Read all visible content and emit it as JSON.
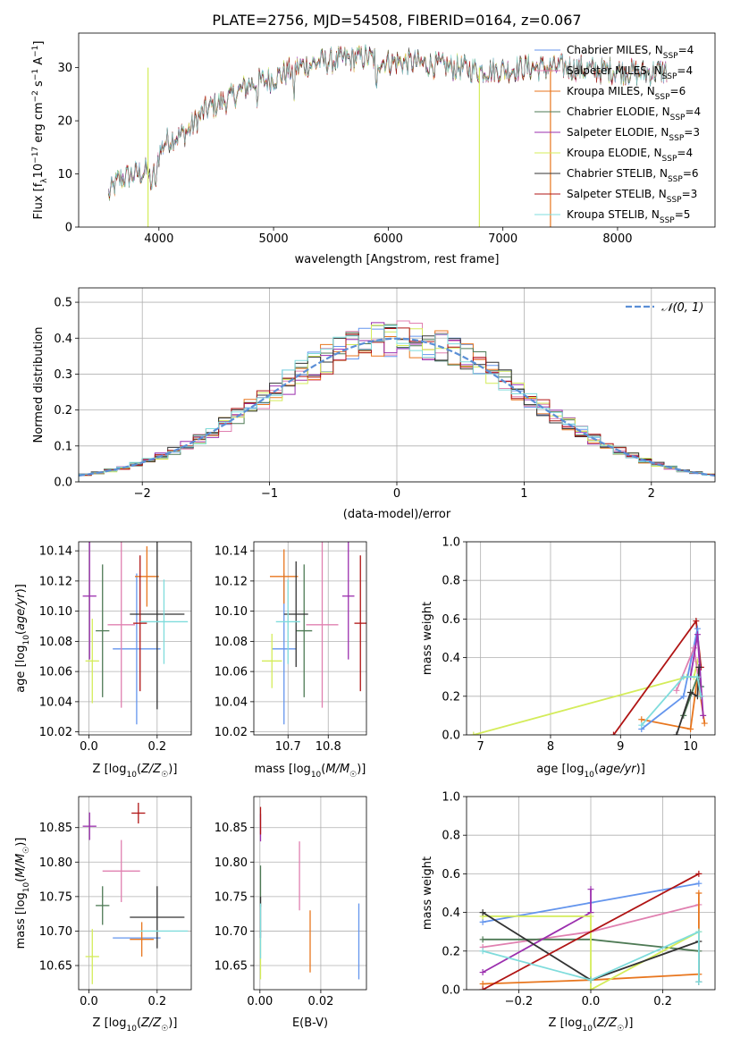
{
  "chart_data": [
    {
      "id": "spectrum",
      "type": "line",
      "title": "PLATE=2756, MJD=54508, FIBERID=0164, z=0.067",
      "xlabel": "wavelength [Angstrom, rest frame]",
      "ylabel_parts": [
        "Flux [f",
        "λ",
        "10",
        "−17",
        " erg cm",
        "−2",
        " s",
        "−1",
        " A",
        "−1",
        "]"
      ],
      "xlim": [
        3300,
        8850
      ],
      "ylim": [
        0,
        36.5
      ],
      "xticks": [
        4000,
        5000,
        6000,
        7000,
        8000
      ],
      "yticks": [
        0,
        10,
        20,
        30
      ],
      "grid": false,
      "legend_position": "upper-right",
      "continuum_points": [
        [
          3560,
          6
        ],
        [
          3650,
          9
        ],
        [
          3800,
          10
        ],
        [
          3950,
          11
        ],
        [
          4050,
          16
        ],
        [
          4250,
          18
        ],
        [
          4400,
          22
        ],
        [
          4600,
          24
        ],
        [
          4800,
          27
        ],
        [
          5000,
          28
        ],
        [
          5200,
          30
        ],
        [
          5400,
          31
        ],
        [
          5600,
          31.5
        ],
        [
          5800,
          32
        ],
        [
          6000,
          31
        ],
        [
          6200,
          31
        ],
        [
          6400,
          30.5
        ],
        [
          6600,
          30
        ],
        [
          6800,
          29.5
        ],
        [
          7000,
          29.5
        ],
        [
          7200,
          30
        ],
        [
          7400,
          30
        ],
        [
          7600,
          30
        ],
        [
          7800,
          29.5
        ],
        [
          8000,
          29.5
        ],
        [
          8200,
          29
        ],
        [
          8400,
          29.3
        ]
      ],
      "series": [
        {
          "name": "Chabrier MILES",
          "nssp": "4",
          "color": "#6495ed"
        },
        {
          "name": "Salpeter MILES",
          "nssp": "4",
          "color": "#e080b0"
        },
        {
          "name": "Kroupa MILES",
          "nssp": "6",
          "color": "#e8761e"
        },
        {
          "name": "Chabrier ELODIE",
          "nssp": "4",
          "color": "#4e7a55"
        },
        {
          "name": "Salpeter ELODIE",
          "nssp": "3",
          "color": "#9b2fae"
        },
        {
          "name": "Kroupa ELODIE",
          "nssp": "4",
          "color": "#d4ec5a"
        },
        {
          "name": "Chabrier STELIB",
          "nssp": "6",
          "color": "#333333"
        },
        {
          "name": "Salpeter STELIB",
          "nssp": "3",
          "color": "#b01414"
        },
        {
          "name": "Kroupa STELIB",
          "nssp": "5",
          "color": "#7fdcdc"
        }
      ],
      "legend_label_format": "{name}, N_SSP={nssp}"
    },
    {
      "id": "residuals",
      "type": "line",
      "xlabel": "(data-model)/error",
      "ylabel": "Normed distribution",
      "xlim": [
        -2.5,
        2.5
      ],
      "ylim": [
        0,
        0.54
      ],
      "xticks": [
        -2,
        -1,
        0,
        1,
        2
      ],
      "xtick_labels": [
        "−2",
        "−1",
        "0",
        "1",
        "2"
      ],
      "yticks": [
        0.0,
        0.1,
        0.2,
        0.3,
        0.4,
        0.5
      ],
      "ytick_labels": [
        "0.0",
        "0.1",
        "0.2",
        "0.3",
        "0.4",
        "0.5"
      ],
      "grid": true,
      "bin_width": 0.1,
      "reference_curve": {
        "label": "𝒩(0, 1)",
        "color": "#5b8fd6",
        "style": "dashed"
      },
      "legend_position": "upper-right",
      "histogram_series_colors": [
        "#6495ed",
        "#e080b0",
        "#e8761e",
        "#4e7a55",
        "#9b2fae",
        "#d4ec5a",
        "#333333",
        "#b01414",
        "#7fdcdc"
      ]
    },
    {
      "id": "age-vs-Z",
      "type": "scatter",
      "xlabel": "Z [log10(Z/Z☉)]",
      "xlabel_parts": [
        "Z [log",
        "10",
        "(",
        "Z/Z",
        "☉",
        ")]"
      ],
      "ylabel_parts": [
        "age  [log",
        "10",
        "(",
        "age/yr",
        ")]"
      ],
      "xlim": [
        -0.03,
        0.3
      ],
      "ylim": [
        10.018,
        10.146
      ],
      "xticks": [
        0.0,
        0.2
      ],
      "xtick_labels": [
        "0.0",
        "0.2"
      ],
      "yticks": [
        10.02,
        10.04,
        10.06,
        10.08,
        10.1,
        10.12,
        10.14
      ],
      "ytick_labels": [
        "10.02",
        "10.04",
        "10.06",
        "10.08",
        "10.10",
        "10.12",
        "10.14"
      ],
      "grid": true,
      "points": [
        {
          "series": "Chabrier MILES",
          "x": 0.14,
          "y": 10.075,
          "xerr": 0.07,
          "yerr": 0.05
        },
        {
          "series": "Salpeter MILES",
          "x": 0.095,
          "y": 10.091,
          "xerr": 0.04,
          "yerr": 0.055
        },
        {
          "series": "Kroupa MILES",
          "x": 0.17,
          "y": 10.123,
          "xerr": 0.035,
          "yerr": 0.02
        },
        {
          "series": "Chabrier ELODIE",
          "x": 0.04,
          "y": 10.087,
          "xerr": 0.02,
          "yerr": 0.044
        },
        {
          "series": "Salpeter ELODIE",
          "x": 0.002,
          "y": 10.11,
          "xerr": 0.02,
          "yerr": 0.042
        },
        {
          "series": "Kroupa ELODIE",
          "x": 0.01,
          "y": 10.067,
          "xerr": 0.02,
          "yerr": 0.028
        },
        {
          "series": "Chabrier STELIB",
          "x": 0.2,
          "y": 10.098,
          "xerr": 0.08,
          "yerr": 0.063
        },
        {
          "series": "Salpeter STELIB",
          "x": 0.15,
          "y": 10.092,
          "xerr": 0.02,
          "yerr": 0.045
        },
        {
          "series": "Kroupa STELIB",
          "x": 0.22,
          "y": 10.093,
          "xerr": 0.07,
          "yerr": 0.028
        }
      ]
    },
    {
      "id": "age-vs-mass",
      "type": "scatter",
      "xlabel": "mass [log10(M/M☉)]",
      "xlabel_parts": [
        "mass [log",
        "10",
        "(",
        "M/M",
        "☉",
        ")]"
      ],
      "xlim": [
        10.615,
        10.895
      ],
      "ylim": [
        10.018,
        10.146
      ],
      "xticks": [
        10.7,
        10.8
      ],
      "xtick_labels": [
        "10.7",
        "10.8"
      ],
      "yticks": [
        10.02,
        10.04,
        10.06,
        10.08,
        10.1,
        10.12,
        10.14
      ],
      "ytick_labels": [
        "10.02",
        "10.04",
        "10.06",
        "10.08",
        "10.10",
        "10.12",
        "10.14"
      ],
      "grid": true,
      "points": [
        {
          "series": "Chabrier MILES",
          "x": 10.69,
          "y": 10.075,
          "xerr": 0.03,
          "yerr": 0.05
        },
        {
          "series": "Salpeter MILES",
          "x": 10.785,
          "y": 10.091,
          "xerr": 0.04,
          "yerr": 0.055
        },
        {
          "series": "Kroupa MILES",
          "x": 10.69,
          "y": 10.123,
          "xerr": 0.035,
          "yerr": 0.018
        },
        {
          "series": "Chabrier ELODIE",
          "x": 10.74,
          "y": 10.087,
          "xerr": 0.02,
          "yerr": 0.044
        },
        {
          "series": "Salpeter ELODIE",
          "x": 10.85,
          "y": 10.11,
          "xerr": 0.015,
          "yerr": 0.042
        },
        {
          "series": "Kroupa ELODIE",
          "x": 10.66,
          "y": 10.067,
          "xerr": 0.025,
          "yerr": 0.018
        },
        {
          "series": "Chabrier STELIB",
          "x": 10.72,
          "y": 10.098,
          "xerr": 0.03,
          "yerr": 0.035
        },
        {
          "series": "Salpeter STELIB",
          "x": 10.88,
          "y": 10.092,
          "xerr": 0.015,
          "yerr": 0.045
        },
        {
          "series": "Kroupa STELIB",
          "x": 10.7,
          "y": 10.093,
          "xerr": 0.03,
          "yerr": 0.028
        }
      ]
    },
    {
      "id": "weight-vs-age",
      "type": "line",
      "xlabel_parts": [
        "age  [log",
        "10",
        "(",
        "age/yr",
        ")]"
      ],
      "ylabel": "mass weight",
      "xlim": [
        6.8,
        10.35
      ],
      "ylim": [
        0,
        1
      ],
      "xticks": [
        7,
        8,
        9,
        10
      ],
      "xtick_labels": [
        "7",
        "8",
        "9",
        "10"
      ],
      "yticks": [
        0.0,
        0.2,
        0.4,
        0.6,
        0.8,
        1.0
      ],
      "ytick_labels": [
        "0.0",
        "0.2",
        "0.4",
        "0.6",
        "0.8",
        "1.0"
      ],
      "grid": true,
      "series": [
        {
          "series": "Kroupa ELODIE",
          "points": [
            [
              6.9,
              0.0
            ],
            [
              9.95,
              0.3
            ],
            [
              10.05,
              0.3
            ],
            [
              10.1,
              0.38
            ]
          ]
        },
        {
          "series": "Salpeter STELIB",
          "points": [
            [
              8.9,
              0.0
            ],
            [
              10.08,
              0.59
            ],
            [
              10.15,
              0.35
            ]
          ]
        },
        {
          "series": "Kroupa MILES",
          "points": [
            [
              9.3,
              0.08
            ],
            [
              10.0,
              0.03
            ],
            [
              10.1,
              0.3
            ],
            [
              10.2,
              0.06
            ]
          ]
        },
        {
          "series": "Chabrier MILES",
          "points": [
            [
              9.3,
              0.03
            ],
            [
              9.9,
              0.2
            ],
            [
              10.1,
              0.55
            ],
            [
              10.15,
              0.25
            ]
          ]
        },
        {
          "series": "Salpeter MILES",
          "points": [
            [
              9.8,
              0.23
            ],
            [
              10.05,
              0.45
            ],
            [
              10.15,
              0.2
            ]
          ]
        },
        {
          "series": "Chabrier ELODIE",
          "points": [
            [
              9.9,
              0.1
            ],
            [
              10.1,
              0.3
            ],
            [
              10.15,
              0.25
            ]
          ]
        },
        {
          "series": "Salpeter ELODIE",
          "points": [
            [
              10.0,
              0.3
            ],
            [
              10.1,
              0.52
            ],
            [
              10.18,
              0.1
            ]
          ]
        },
        {
          "series": "Chabrier STELIB",
          "points": [
            [
              9.8,
              0.0
            ],
            [
              10.0,
              0.22
            ],
            [
              10.1,
              0.2
            ],
            [
              10.12,
              0.35
            ]
          ]
        },
        {
          "series": "Kroupa STELIB",
          "points": [
            [
              9.3,
              0.05
            ],
            [
              9.9,
              0.3
            ],
            [
              10.1,
              0.3
            ],
            [
              10.15,
              0.2
            ]
          ]
        }
      ]
    },
    {
      "id": "mass-vs-Z",
      "type": "scatter",
      "xlabel_parts": [
        "Z [log",
        "10",
        "(",
        "Z/Z",
        "☉",
        ")]"
      ],
      "ylabel_parts": [
        "mass [log",
        "10",
        "(",
        "M/M",
        "☉",
        ")]"
      ],
      "xlim": [
        -0.03,
        0.3
      ],
      "ylim": [
        10.615,
        10.895
      ],
      "xticks": [
        0.0,
        0.2
      ],
      "xtick_labels": [
        "0.0",
        "0.2"
      ],
      "yticks": [
        10.65,
        10.7,
        10.75,
        10.8,
        10.85
      ],
      "ytick_labels": [
        "10.65",
        "10.70",
        "10.75",
        "10.80",
        "10.85"
      ],
      "grid": true,
      "points": [
        {
          "series": "Chabrier MILES",
          "x": 0.14,
          "y": 10.69,
          "xerr": 0.07,
          "yerr": 0.0
        },
        {
          "series": "Salpeter MILES",
          "x": 0.095,
          "y": 10.787,
          "xerr": 0.055,
          "yerr": 0.045
        },
        {
          "series": "Kroupa MILES",
          "x": 0.155,
          "y": 10.688,
          "xerr": 0.035,
          "yerr": 0.025
        },
        {
          "series": "Chabrier ELODIE",
          "x": 0.04,
          "y": 10.737,
          "xerr": 0.02,
          "yerr": 0.028
        },
        {
          "series": "Salpeter ELODIE",
          "x": 0.002,
          "y": 10.852,
          "xerr": 0.02,
          "yerr": 0.02
        },
        {
          "series": "Kroupa ELODIE",
          "x": 0.01,
          "y": 10.663,
          "xerr": 0.02,
          "yerr": 0.04
        },
        {
          "series": "Chabrier STELIB",
          "x": 0.2,
          "y": 10.72,
          "xerr": 0.08,
          "yerr": 0.045
        },
        {
          "series": "Salpeter STELIB",
          "x": 0.145,
          "y": 10.871,
          "xerr": 0.02,
          "yerr": 0.015
        },
        {
          "series": "Kroupa STELIB",
          "x": 0.22,
          "y": 10.7,
          "xerr": 0.07,
          "yerr": 0.0
        }
      ]
    },
    {
      "id": "mass-vs-ebv",
      "type": "scatter",
      "xlabel": "E(B-V)",
      "xlim": [
        -0.002,
        0.035
      ],
      "ylim": [
        10.615,
        10.895
      ],
      "xticks": [
        0.0,
        0.02
      ],
      "xtick_labels": [
        "0.00",
        "0.02"
      ],
      "yticks": [
        10.65,
        10.7,
        10.75,
        10.8,
        10.85
      ],
      "ytick_labels": [
        "10.65",
        "10.70",
        "10.75",
        "10.80",
        "10.85"
      ],
      "grid": true,
      "points": [
        {
          "series": "Chabrier MILES",
          "x": 0.0325,
          "y": 10.685,
          "xerr": 0,
          "yerr": 0.055
        },
        {
          "series": "Salpeter MILES",
          "x": 0.013,
          "y": 10.78,
          "xerr": 0,
          "yerr": 0.05
        },
        {
          "series": "Kroupa MILES",
          "x": 0.0165,
          "y": 10.685,
          "xerr": 0,
          "yerr": 0.045
        },
        {
          "series": "Chabrier ELODIE",
          "x": 0.0002,
          "y": 10.765,
          "xerr": 0,
          "yerr": 0.03
        },
        {
          "series": "Salpeter ELODIE",
          "x": 0.0002,
          "y": 10.85,
          "xerr": 0,
          "yerr": 0.02
        },
        {
          "series": "Kroupa ELODIE",
          "x": 0.0002,
          "y": 10.66,
          "xerr": 0,
          "yerr": 0.03
        },
        {
          "series": "Chabrier STELIB",
          "x": 0.0002,
          "y": 10.72,
          "xerr": 0,
          "yerr": 0.03
        },
        {
          "series": "Salpeter STELIB",
          "x": 0.0002,
          "y": 10.86,
          "xerr": 0,
          "yerr": 0.02
        },
        {
          "series": "Kroupa STELIB",
          "x": 0.0002,
          "y": 10.7,
          "xerr": 0,
          "yerr": 0.04
        }
      ]
    },
    {
      "id": "weight-vs-Z",
      "type": "line",
      "xlabel_parts": [
        "Z [log",
        "10",
        "(",
        "Z/Z",
        "☉",
        ")]"
      ],
      "ylabel": "mass weight",
      "xlim": [
        -0.345,
        0.345
      ],
      "ylim": [
        0,
        1
      ],
      "xticks": [
        -0.2,
        0.0,
        0.2
      ],
      "xtick_labels": [
        "−0.2",
        "0.0",
        "0.2"
      ],
      "yticks": [
        0.0,
        0.2,
        0.4,
        0.6,
        0.8,
        1.0
      ],
      "ytick_labels": [
        "0.0",
        "0.2",
        "0.4",
        "0.6",
        "0.8",
        "1.0"
      ],
      "grid": true,
      "series": [
        {
          "series": "Chabrier MILES",
          "points": [
            [
              -0.3,
              0.35
            ],
            [
              0.0,
              0.45
            ],
            [
              0.3,
              0.55
            ]
          ]
        },
        {
          "series": "Salpeter MILES",
          "points": [
            [
              -0.3,
              0.22
            ],
            [
              0.0,
              0.3
            ],
            [
              0.3,
              0.44
            ]
          ]
        },
        {
          "series": "Kroupa MILES",
          "points": [
            [
              -0.3,
              0.03
            ],
            [
              0.0,
              0.05
            ],
            [
              0.3,
              0.08
            ],
            [
              0.3,
              0.5
            ]
          ]
        },
        {
          "series": "Chabrier ELODIE",
          "points": [
            [
              -0.3,
              0.26
            ],
            [
              0.0,
              0.26
            ],
            [
              0.3,
              0.2
            ]
          ]
        },
        {
          "series": "Salpeter ELODIE",
          "points": [
            [
              -0.3,
              0.09
            ],
            [
              0.0,
              0.4
            ],
            [
              0.0,
              0.52
            ]
          ]
        },
        {
          "series": "Kroupa ELODIE",
          "points": [
            [
              -0.3,
              0.38
            ],
            [
              0.0,
              0.38
            ],
            [
              0.0,
              0.0
            ],
            [
              0.3,
              0.3
            ]
          ]
        },
        {
          "series": "Chabrier STELIB",
          "points": [
            [
              -0.3,
              0.4
            ],
            [
              0.0,
              0.05
            ],
            [
              0.3,
              0.25
            ],
            [
              0.3,
              0.04
            ]
          ]
        },
        {
          "series": "Salpeter STELIB",
          "points": [
            [
              -0.3,
              0.0
            ],
            [
              0.3,
              0.6
            ]
          ]
        },
        {
          "series": "Kroupa STELIB",
          "points": [
            [
              -0.3,
              0.2
            ],
            [
              0.0,
              0.05
            ],
            [
              0.3,
              0.3
            ],
            [
              0.3,
              0.04
            ]
          ]
        }
      ]
    }
  ]
}
